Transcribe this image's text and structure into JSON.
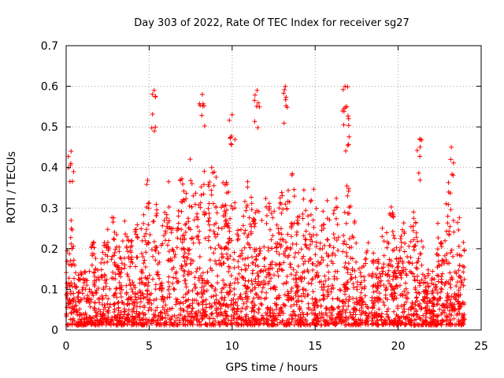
{
  "chart_data": {
    "type": "scatter",
    "title": "Day 303 of 2022, Rate Of TEC Index for receiver sg27",
    "xlabel": "GPS time / hours",
    "ylabel": "ROTI / TECUs",
    "xlim": [
      0,
      25
    ],
    "ylim": [
      0,
      0.7
    ],
    "xticks": [
      "0",
      "5",
      "10",
      "15",
      "20",
      "25"
    ],
    "yticks": [
      "0",
      "0.1",
      "0.2",
      "0.3",
      "0.4",
      "0.5",
      "0.6",
      "0.7"
    ],
    "grid": true,
    "legend": "none",
    "marker": "plus",
    "series_color": "#ff0000",
    "x_range_of_data": [
      0,
      24
    ],
    "peaks": [
      {
        "x": 0.3,
        "y": 0.44
      },
      {
        "x": 5.3,
        "y": 0.59
      },
      {
        "x": 8.2,
        "y": 0.58
      },
      {
        "x": 10.0,
        "y": 0.53
      },
      {
        "x": 11.5,
        "y": 0.59
      },
      {
        "x": 13.2,
        "y": 0.6
      },
      {
        "x": 16.8,
        "y": 0.6
      },
      {
        "x": 16.9,
        "y": 0.55
      },
      {
        "x": 21.3,
        "y": 0.47
      },
      {
        "x": 23.2,
        "y": 0.45
      }
    ]
  }
}
